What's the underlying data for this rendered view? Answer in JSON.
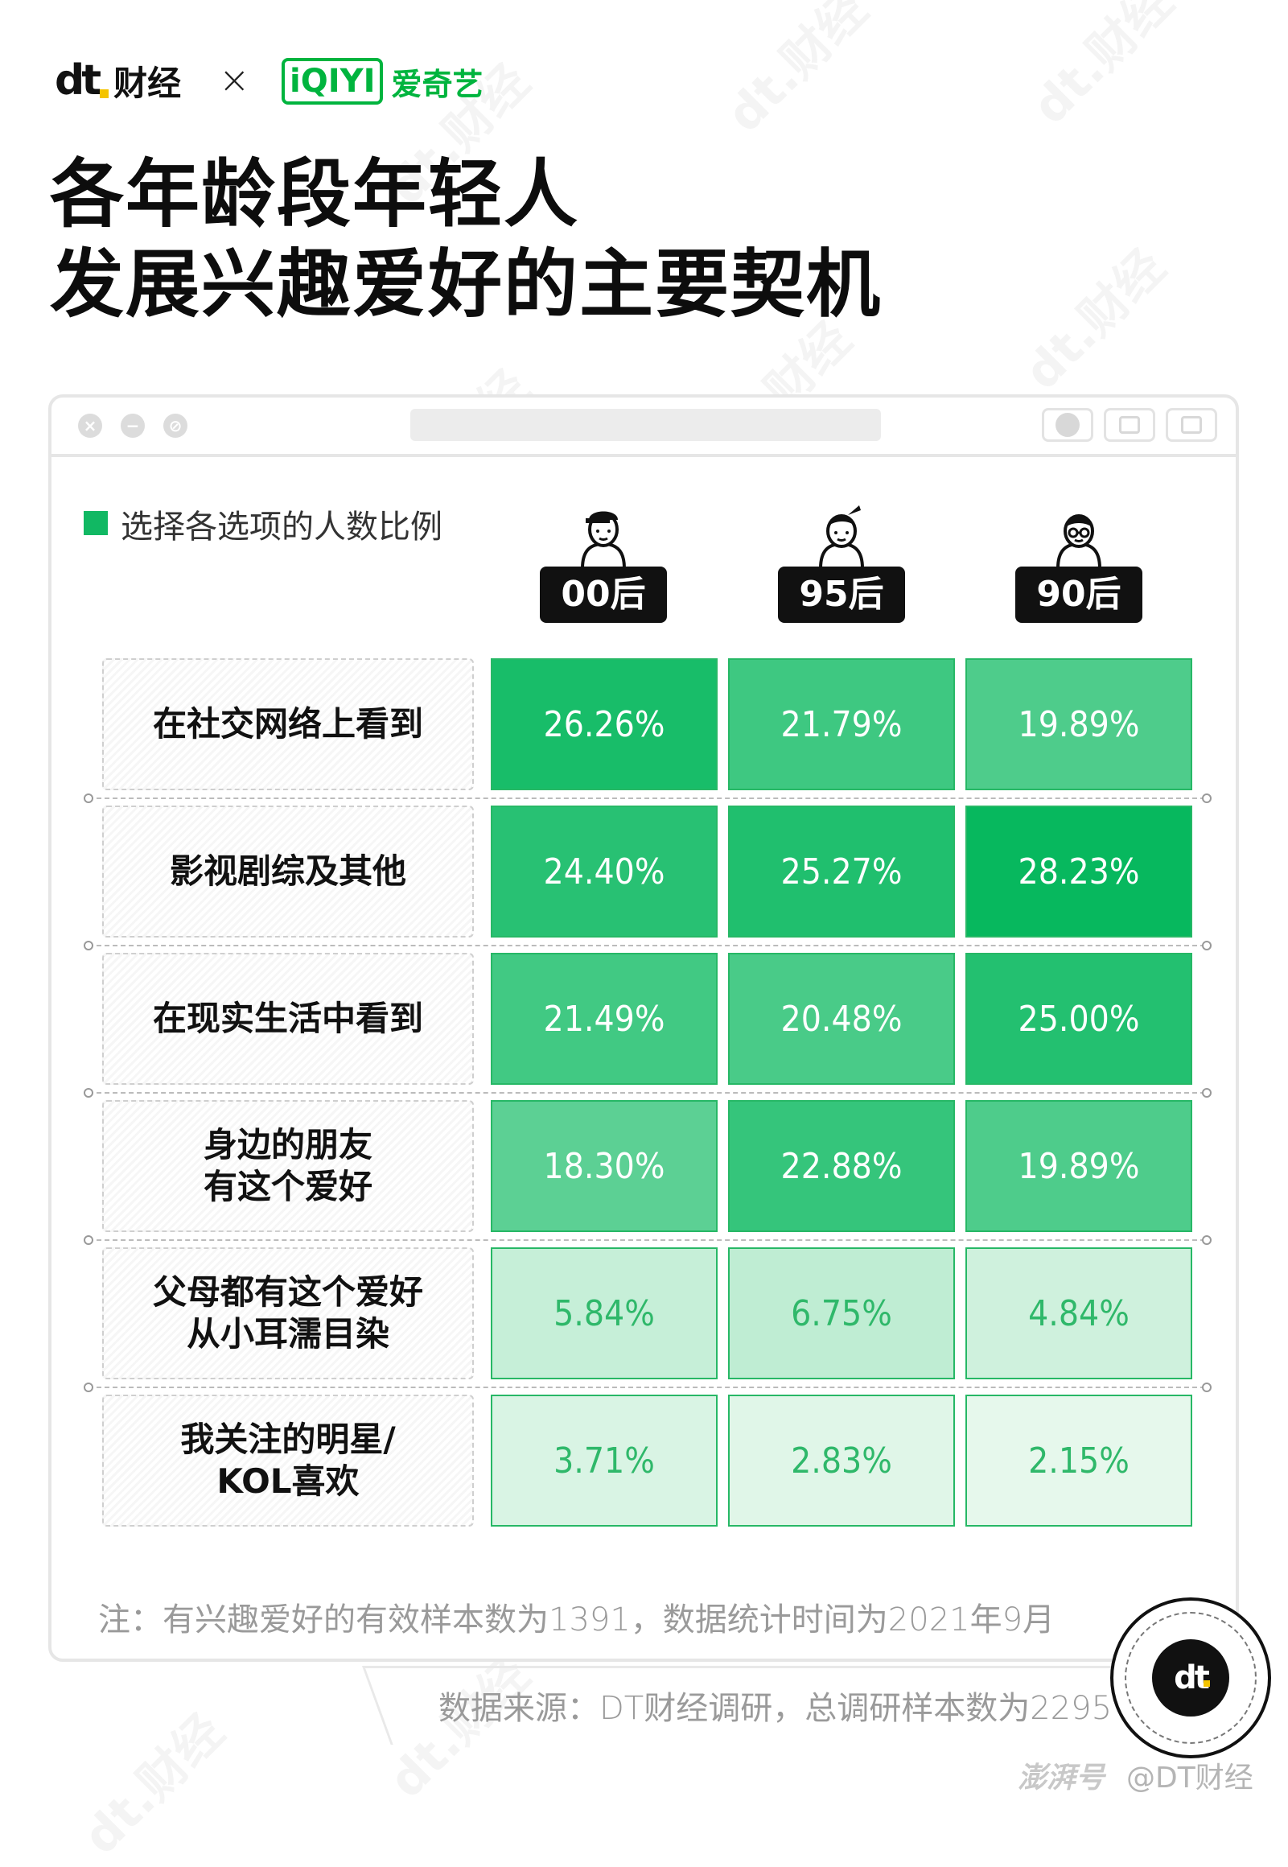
{
  "header": {
    "dt_logo_mark": "dt",
    "dt_logo_name": "财经",
    "times": "×",
    "partner_logo_mark": "iQIYI",
    "partner_logo_name": "爱奇艺"
  },
  "title": {
    "line1": "各年龄段年轻人",
    "line2": "发展兴趣爱好的主要契机"
  },
  "legend": {
    "label": "选择各选项的人数比例",
    "color": "#11b863"
  },
  "columns": [
    {
      "label": "00后",
      "avatar": "cap-person-icon"
    },
    {
      "label": "95后",
      "avatar": "ponytail-person-icon"
    },
    {
      "label": "90后",
      "avatar": "glasses-person-icon"
    }
  ],
  "rows": [
    {
      "label": "在社交网络上看到",
      "values": [
        "26.26%",
        "21.79%",
        "19.89%"
      ]
    },
    {
      "label": "影视剧综及其他",
      "values": [
        "24.40%",
        "25.27%",
        "28.23%"
      ]
    },
    {
      "label": "在现实生活中看到",
      "values": [
        "21.49%",
        "20.48%",
        "25.00%"
      ]
    },
    {
      "label": "身边的朋友\n有这个爱好",
      "values": [
        "18.30%",
        "22.88%",
        "19.89%"
      ]
    },
    {
      "label": "父母都有这个爱好\n从小耳濡目染",
      "values": [
        "5.84%",
        "6.75%",
        "4.84%"
      ]
    },
    {
      "label": "我关注的明星/\nKOL喜欢",
      "values": [
        "3.71%",
        "2.83%",
        "2.15%"
      ]
    }
  ],
  "chart_data": {
    "type": "heatmap",
    "title": "各年龄段年轻人发展兴趣爱好的主要契机",
    "categories": [
      "在社交网络上看到",
      "影视剧综及其他",
      "在现实生活中看到",
      "身边的朋友有这个爱好",
      "父母都有这个爱好从小耳濡目染",
      "我关注的明星/KOL喜欢"
    ],
    "series": [
      {
        "name": "00后",
        "values": [
          26.26,
          24.4,
          21.49,
          18.3,
          5.84,
          3.71
        ]
      },
      {
        "name": "95后",
        "values": [
          21.79,
          25.27,
          20.48,
          22.88,
          6.75,
          2.83
        ]
      },
      {
        "name": "90后",
        "values": [
          19.89,
          28.23,
          25.0,
          19.89,
          4.84,
          2.15
        ]
      }
    ],
    "unit": "%",
    "color_scale": {
      "low": "#e6f8ec",
      "high": "#07b85e"
    }
  },
  "note": "注：有兴趣爱好的有效样本数为1391，数据统计时间为2021年9月",
  "source": "数据来源：DT财经调研，总调研样本数为2295",
  "seal_mark": "dt",
  "credit": "@DT财经",
  "credit_platform": "澎湃号"
}
